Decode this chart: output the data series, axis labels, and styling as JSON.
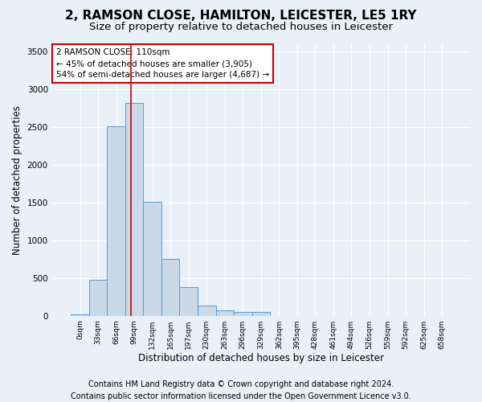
{
  "title": "2, RAMSON CLOSE, HAMILTON, LEICESTER, LE5 1RY",
  "subtitle": "Size of property relative to detached houses in Leicester",
  "xlabel": "Distribution of detached houses by size in Leicester",
  "ylabel": "Number of detached properties",
  "footer_line1": "Contains HM Land Registry data © Crown copyright and database right 2024.",
  "footer_line2": "Contains public sector information licensed under the Open Government Licence v3.0.",
  "bar_labels": [
    "0sqm",
    "33sqm",
    "66sqm",
    "99sqm",
    "132sqm",
    "165sqm",
    "197sqm",
    "230sqm",
    "263sqm",
    "296sqm",
    "329sqm",
    "362sqm",
    "395sqm",
    "428sqm",
    "461sqm",
    "494sqm",
    "526sqm",
    "559sqm",
    "592sqm",
    "625sqm",
    "658sqm"
  ],
  "bar_values": [
    20,
    475,
    2510,
    2820,
    1510,
    750,
    385,
    140,
    75,
    55,
    55,
    0,
    0,
    0,
    0,
    0,
    0,
    0,
    0,
    0,
    0
  ],
  "bar_color": "#c9d9e8",
  "bar_edgecolor": "#5b9bd5",
  "vline_x": 3.33,
  "vline_color": "#cc0000",
  "annotation_text": "2 RAMSON CLOSE: 110sqm\n← 45% of detached houses are smaller (3,905)\n54% of semi-detached houses are larger (4,687) →",
  "annotation_fontsize": 7.5,
  "title_fontsize": 11,
  "subtitle_fontsize": 9.5,
  "xlabel_fontsize": 8.5,
  "ylabel_fontsize": 8.5,
  "footer_fontsize": 7,
  "ylim": [
    0,
    3600
  ],
  "yticks": [
    0,
    500,
    1000,
    1500,
    2000,
    2500,
    3000,
    3500
  ],
  "bg_color": "#eaf0f8",
  "plot_bg_color": "#eaf0f8",
  "grid_color": "#ffffff",
  "annotation_box_color": "#ffffff",
  "annotation_box_edgecolor": "#cc0000"
}
